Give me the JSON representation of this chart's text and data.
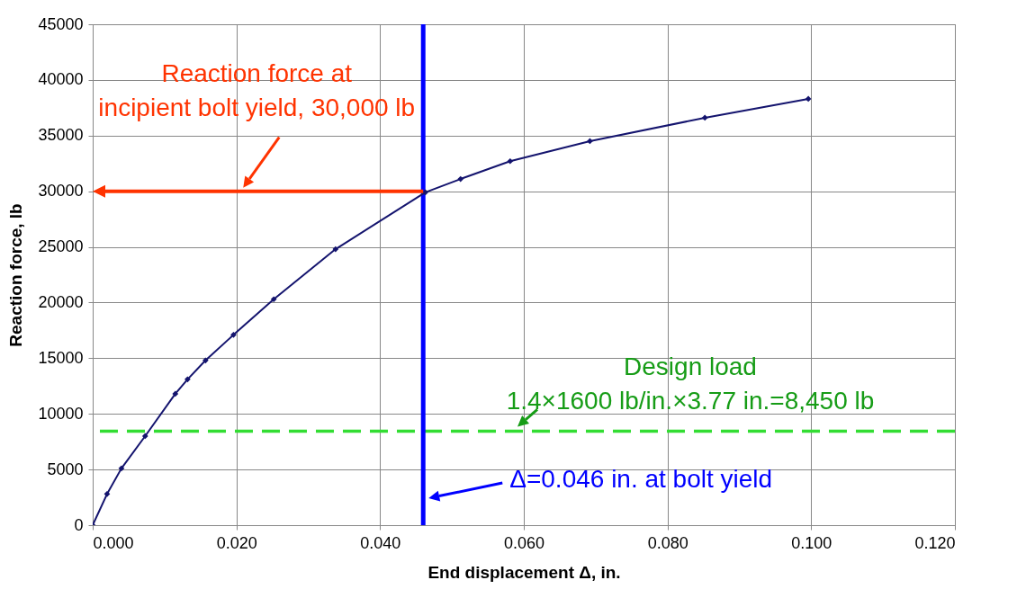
{
  "chart_data": {
    "type": "line",
    "xlabel": "End displacement Δ, in.",
    "ylabel": "Reaction force, lb",
    "x": [
      0,
      0.002,
      0.004,
      0.0073,
      0.0115,
      0.0132,
      0.0157,
      0.0196,
      0.0252,
      0.0338,
      0.0463,
      0.0512,
      0.0581,
      0.0692,
      0.0852,
      0.0996
    ],
    "series": [
      {
        "color": "#14146e",
        "values": [
          0,
          2800,
          5100,
          8000,
          11800,
          13100,
          14800,
          17100,
          20300,
          24800,
          29900,
          31100,
          32700,
          34500,
          36600,
          38300
        ]
      }
    ],
    "xlim": [
      0,
      0.12
    ],
    "xticks": [
      {
        "value": 0,
        "label": "0.000"
      },
      {
        "value": 0.02,
        "label": "0.020"
      },
      {
        "value": 0.04,
        "label": "0.040"
      },
      {
        "value": 0.06,
        "label": "0.060"
      },
      {
        "value": 0.08,
        "label": "0.080"
      },
      {
        "value": 0.1,
        "label": "0.100"
      },
      {
        "value": 0.12,
        "label": "0.120"
      }
    ],
    "ylim": [
      0,
      45000
    ],
    "yticks": [
      0,
      5000,
      10000,
      15000,
      20000,
      25000,
      30000,
      35000,
      40000,
      45000
    ],
    "grid": true,
    "marker": "diamond",
    "line_style": "solid",
    "ref_lines": [
      {
        "axis": "y",
        "value": 8450,
        "label": "Design load\n1.4×1600 lb/in.×3.77 in.=8,450 lb",
        "color": "#33dd33",
        "line_style": "dashed"
      },
      {
        "axis": "x",
        "value": 0.046,
        "label": "Δ=0.046 in. at bolt yield",
        "color": "#0000ff",
        "line_style": "solid"
      }
    ],
    "annotations": [
      {
        "text": "Reaction force at\nincipient bolt yield, 30,000 lb",
        "x": 0.046,
        "y": 30000
      }
    ]
  }
}
